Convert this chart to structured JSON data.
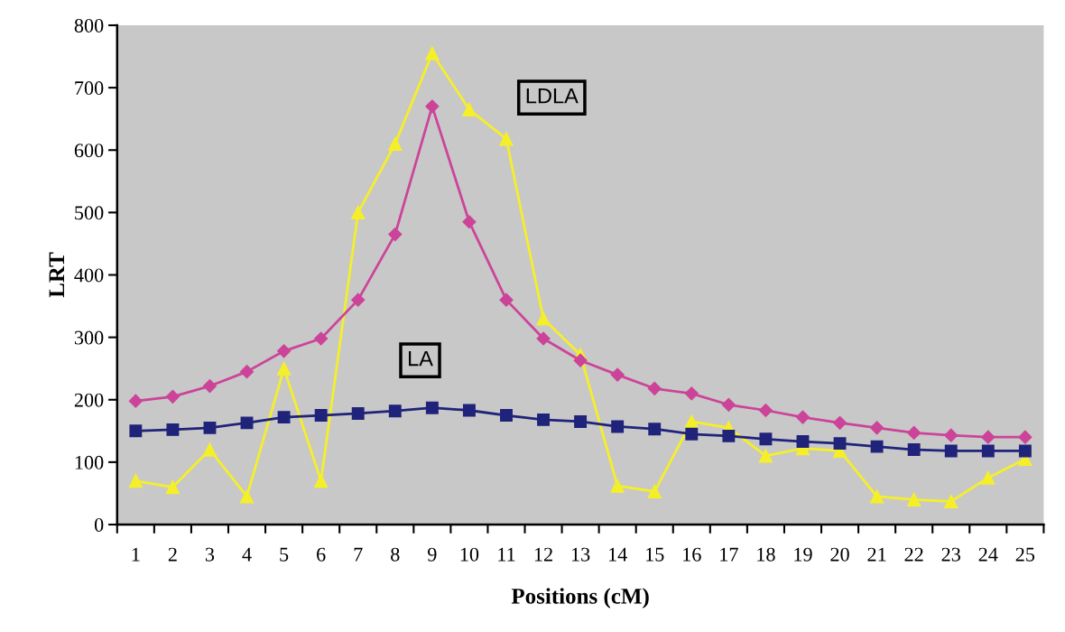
{
  "chart_data": {
    "type": "line",
    "xlabel": "Positions (cM)",
    "ylabel": "LRT",
    "categories": [
      "1",
      "2",
      "3",
      "4",
      "5",
      "6",
      "7",
      "8",
      "9",
      "10",
      "11",
      "12",
      "13",
      "14",
      "15",
      "16",
      "17",
      "18",
      "19",
      "20",
      "21",
      "22",
      "23",
      "24",
      "25"
    ],
    "ylim": [
      0,
      800
    ],
    "yticks": [
      0,
      100,
      200,
      300,
      400,
      500,
      600,
      700,
      800
    ],
    "grid": false,
    "legend": false,
    "series": [
      {
        "color": "#cc4499",
        "marker": "diamond",
        "values": [
          198,
          205,
          222,
          245,
          278,
          298,
          360,
          465,
          670,
          485,
          360,
          298,
          263,
          240,
          218,
          210,
          192,
          183,
          172,
          163,
          155,
          147,
          143,
          140,
          140
        ]
      },
      {
        "name": "LA",
        "color": "#1f237a",
        "marker": "square",
        "values": [
          150,
          152,
          155,
          163,
          172,
          175,
          178,
          182,
          187,
          183,
          175,
          168,
          165,
          157,
          153,
          145,
          142,
          137,
          133,
          130,
          125,
          120,
          118,
          118,
          118
        ]
      },
      {
        "name": "LDLA",
        "color": "#f5ef2a",
        "marker": "triangle",
        "values": [
          70,
          60,
          120,
          45,
          250,
          70,
          500,
          610,
          755,
          665,
          618,
          330,
          272,
          62,
          53,
          165,
          155,
          110,
          122,
          118,
          45,
          40,
          37,
          75,
          105
        ]
      }
    ]
  }
}
